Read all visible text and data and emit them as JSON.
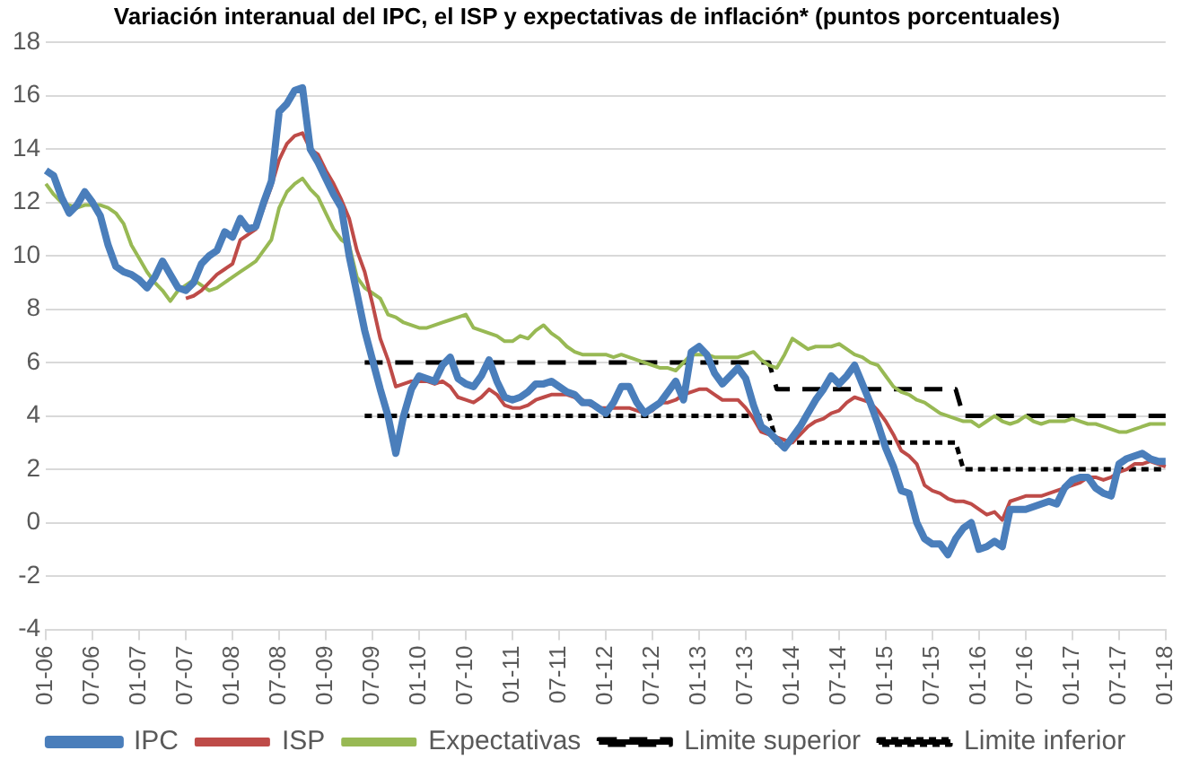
{
  "chart_data": {
    "type": "line",
    "title": "Variación interanual del IPC, el ISP y expectativas de inflación* (puntos porcentuales)",
    "categories": [
      "01-06",
      null,
      null,
      null,
      null,
      null,
      "07-06",
      null,
      null,
      null,
      null,
      null,
      "01-07",
      null,
      null,
      null,
      null,
      null,
      "07-07",
      null,
      null,
      null,
      null,
      null,
      "01-08",
      null,
      null,
      null,
      null,
      null,
      "07-08",
      null,
      null,
      null,
      null,
      null,
      "01-09",
      null,
      null,
      null,
      null,
      null,
      "07-09",
      null,
      null,
      null,
      null,
      null,
      "01-10",
      null,
      null,
      null,
      null,
      null,
      "07-10",
      null,
      null,
      null,
      null,
      null,
      "01-11",
      null,
      null,
      null,
      null,
      null,
      "07-11",
      null,
      null,
      null,
      null,
      null,
      "01-12",
      null,
      null,
      null,
      null,
      null,
      "07-12",
      null,
      null,
      null,
      null,
      null,
      "01-13",
      null,
      null,
      null,
      null,
      null,
      "07-13",
      null,
      null,
      null,
      null,
      null,
      "01-14",
      null,
      null,
      null,
      null,
      null,
      "07-14",
      null,
      null,
      null,
      null,
      null,
      "01-15",
      null,
      null,
      null,
      null,
      null,
      "07-15",
      null,
      null,
      null,
      null,
      null,
      "01-16",
      null,
      null,
      null,
      null,
      null,
      "07-16",
      null,
      null,
      null,
      null,
      null,
      "01-17",
      null,
      null,
      null,
      null,
      null,
      "07-17",
      null,
      null,
      null,
      null,
      null,
      "01-18"
    ],
    "series": [
      {
        "name": "IPC",
        "color": "#4a7ebb",
        "values": [
          13.2,
          13.0,
          12.2,
          11.6,
          11.9,
          12.4,
          12.0,
          11.5,
          10.4,
          9.6,
          9.4,
          9.3,
          9.1,
          8.8,
          9.2,
          9.8,
          9.3,
          8.8,
          8.7,
          9.0,
          9.7,
          10.0,
          10.2,
          10.9,
          10.7,
          11.4,
          11.0,
          11.1,
          12.0,
          12.8,
          15.4,
          15.7,
          16.2,
          16.3,
          14.0,
          13.5,
          12.9,
          12.3,
          11.8,
          10.0,
          8.6,
          7.2,
          6.1,
          5.0,
          4.0,
          2.6,
          4.0,
          5.0,
          5.5,
          5.4,
          5.3,
          5.9,
          6.2,
          5.4,
          5.2,
          5.1,
          5.5,
          6.1,
          5.3,
          4.7,
          4.6,
          4.7,
          4.9,
          5.2,
          5.2,
          5.3,
          5.1,
          4.9,
          4.8,
          4.5,
          4.5,
          4.3,
          4.1,
          4.5,
          5.1,
          5.1,
          4.5,
          4.1,
          4.3,
          4.5,
          4.9,
          5.3,
          4.6,
          6.4,
          6.6,
          6.3,
          5.6,
          5.2,
          5.5,
          5.8,
          5.4,
          4.4,
          3.6,
          3.4,
          3.1,
          2.8,
          3.2,
          3.6,
          4.1,
          4.6,
          5.0,
          5.5,
          5.2,
          5.5,
          5.9,
          5.2,
          4.5,
          3.7,
          2.8,
          2.1,
          1.2,
          1.1,
          0.0,
          -0.6,
          -0.8,
          -0.8,
          -1.2,
          -0.6,
          -0.2,
          0.0,
          -1.0,
          -0.9,
          -0.7,
          -0.9,
          0.5,
          0.5,
          0.5,
          0.6,
          0.7,
          0.8,
          0.7,
          1.3,
          1.6,
          1.7,
          1.7,
          1.3,
          1.1,
          1.0,
          2.2,
          2.4,
          2.5,
          2.6,
          2.4,
          2.3,
          2.3
        ]
      },
      {
        "name": "ISP",
        "color": "#be4b48",
        "values": [
          null,
          null,
          null,
          null,
          null,
          null,
          null,
          null,
          null,
          null,
          null,
          null,
          null,
          null,
          null,
          null,
          null,
          null,
          8.4,
          8.5,
          8.7,
          9.0,
          9.3,
          9.5,
          9.7,
          10.6,
          10.8,
          11.0,
          11.8,
          12.6,
          13.6,
          14.2,
          14.5,
          14.6,
          14.0,
          13.8,
          13.2,
          12.7,
          12.1,
          11.4,
          10.2,
          9.4,
          8.2,
          6.9,
          6.1,
          5.1,
          5.2,
          5.3,
          5.3,
          5.3,
          5.2,
          5.3,
          5.1,
          4.7,
          4.6,
          4.5,
          4.7,
          5.0,
          4.8,
          4.4,
          4.3,
          4.3,
          4.4,
          4.6,
          4.7,
          4.8,
          4.8,
          4.8,
          4.7,
          4.6,
          4.4,
          4.3,
          4.3,
          4.3,
          4.3,
          4.3,
          4.2,
          4.1,
          4.2,
          4.5,
          4.5,
          4.6,
          4.8,
          4.9,
          5.0,
          5.0,
          4.8,
          4.6,
          4.6,
          4.6,
          4.3,
          3.9,
          3.4,
          3.3,
          3.2,
          3.1,
          3.0,
          3.3,
          3.6,
          3.8,
          3.9,
          4.1,
          4.2,
          4.5,
          4.7,
          4.6,
          4.5,
          4.2,
          3.8,
          3.3,
          2.7,
          2.5,
          2.2,
          1.4,
          1.2,
          1.1,
          0.9,
          0.8,
          0.8,
          0.7,
          0.5,
          0.3,
          0.4,
          0.1,
          0.8,
          0.9,
          1.0,
          1.0,
          1.0,
          1.1,
          1.2,
          1.3,
          1.4,
          1.5,
          1.7,
          1.7,
          1.6,
          1.7,
          1.9,
          2.0,
          2.2,
          2.2,
          2.3,
          2.2,
          2.1
        ]
      },
      {
        "name": "Expectativas",
        "color": "#98b954",
        "values": [
          12.7,
          12.3,
          12.0,
          11.9,
          11.8,
          11.9,
          11.9,
          11.9,
          11.8,
          11.6,
          11.2,
          10.4,
          9.9,
          9.4,
          9.0,
          8.7,
          8.3,
          8.7,
          8.9,
          9.1,
          8.9,
          8.7,
          8.8,
          9.0,
          9.2,
          9.4,
          9.6,
          9.8,
          10.2,
          10.6,
          11.8,
          12.4,
          12.7,
          12.9,
          12.5,
          12.2,
          11.6,
          11.0,
          10.6,
          10.4,
          9.2,
          8.8,
          8.6,
          8.4,
          7.8,
          7.7,
          7.5,
          7.4,
          7.3,
          7.3,
          7.4,
          7.5,
          7.6,
          7.7,
          7.8,
          7.3,
          7.2,
          7.1,
          7.0,
          6.8,
          6.8,
          7.0,
          6.9,
          7.2,
          7.4,
          7.1,
          6.9,
          6.6,
          6.4,
          6.3,
          6.3,
          6.3,
          6.3,
          6.2,
          6.3,
          6.2,
          6.1,
          6.0,
          5.9,
          5.8,
          5.8,
          5.7,
          6.0,
          6.3,
          6.3,
          6.3,
          6.2,
          6.2,
          6.2,
          6.2,
          6.3,
          6.4,
          6.1,
          5.9,
          5.8,
          6.3,
          6.9,
          6.7,
          6.5,
          6.6,
          6.6,
          6.6,
          6.7,
          6.5,
          6.3,
          6.2,
          6.0,
          5.9,
          5.5,
          5.1,
          4.9,
          4.8,
          4.6,
          4.5,
          4.3,
          4.1,
          4.0,
          3.9,
          3.8,
          3.8,
          3.6,
          3.8,
          4.0,
          3.8,
          3.7,
          3.8,
          4.0,
          3.8,
          3.7,
          3.8,
          3.8,
          3.8,
          3.9,
          3.8,
          3.7,
          3.7,
          3.6,
          3.5,
          3.4,
          3.4,
          3.5,
          3.6,
          3.7,
          3.7,
          3.7
        ]
      },
      {
        "name": "Limite superior",
        "color": "#000000",
        "line_style": "dashed",
        "values": [
          null,
          null,
          null,
          null,
          null,
          null,
          null,
          null,
          null,
          null,
          null,
          null,
          null,
          null,
          null,
          null,
          null,
          null,
          null,
          null,
          null,
          null,
          null,
          null,
          null,
          null,
          null,
          null,
          null,
          null,
          null,
          null,
          null,
          null,
          null,
          null,
          null,
          null,
          null,
          null,
          null,
          6,
          6,
          6,
          6,
          6,
          6,
          6,
          6,
          6,
          6,
          6,
          6,
          6,
          6,
          6,
          6,
          6,
          6,
          6,
          6,
          6,
          6,
          6,
          6,
          6,
          6,
          6,
          6,
          6,
          6,
          6,
          6,
          6,
          6,
          6,
          6,
          6,
          6,
          6,
          6,
          6,
          6,
          6,
          6,
          6,
          6,
          6,
          6,
          6,
          6,
          6,
          6,
          6,
          5,
          5,
          5,
          5,
          5,
          5,
          5,
          5,
          5,
          5,
          5,
          5,
          5,
          5,
          5,
          5,
          5,
          5,
          5,
          5,
          5,
          5,
          5,
          5,
          4,
          4,
          4,
          4,
          4,
          4,
          4,
          4,
          4,
          4,
          4,
          4,
          4,
          4,
          4,
          4,
          4,
          4,
          4,
          4,
          4,
          4,
          4,
          4,
          4,
          4,
          4
        ]
      },
      {
        "name": "Limite inferior",
        "color": "#000000",
        "line_style": "dotted",
        "values": [
          null,
          null,
          null,
          null,
          null,
          null,
          null,
          null,
          null,
          null,
          null,
          null,
          null,
          null,
          null,
          null,
          null,
          null,
          null,
          null,
          null,
          null,
          null,
          null,
          null,
          null,
          null,
          null,
          null,
          null,
          null,
          null,
          null,
          null,
          null,
          null,
          null,
          null,
          null,
          null,
          null,
          4,
          4,
          4,
          4,
          4,
          4,
          4,
          4,
          4,
          4,
          4,
          4,
          4,
          4,
          4,
          4,
          4,
          4,
          4,
          4,
          4,
          4,
          4,
          4,
          4,
          4,
          4,
          4,
          4,
          4,
          4,
          4,
          4,
          4,
          4,
          4,
          4,
          4,
          4,
          4,
          4,
          4,
          4,
          4,
          4,
          4,
          4,
          4,
          4,
          4,
          4,
          4,
          4,
          3,
          3,
          3,
          3,
          3,
          3,
          3,
          3,
          3,
          3,
          3,
          3,
          3,
          3,
          3,
          3,
          3,
          3,
          3,
          3,
          3,
          3,
          3,
          3,
          2,
          2,
          2,
          2,
          2,
          2,
          2,
          2,
          2,
          2,
          2,
          2,
          2,
          2,
          2,
          2,
          2,
          2,
          2,
          2,
          2,
          2,
          2,
          2,
          2,
          2,
          2
        ]
      }
    ],
    "ylim": [
      -4,
      18
    ],
    "yticks": [
      -4,
      -2,
      0,
      2,
      4,
      6,
      8,
      10,
      12,
      14,
      16,
      18
    ],
    "grid": "y",
    "legend": "bottom",
    "marker": "none",
    "line_style": "solid"
  }
}
